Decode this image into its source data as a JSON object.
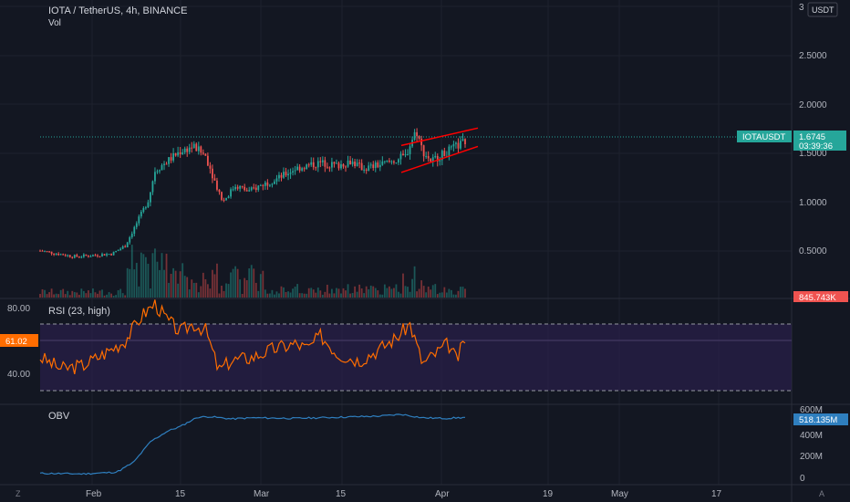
{
  "header": {
    "symbol_title": "IOTA / TetherUS, 4h, BINANCE",
    "volume_label": "Vol"
  },
  "price_axis": {
    "currency_label": "USDT",
    "ticks": [
      "3",
      "2.5000",
      "2.0000",
      "1.5000",
      "1.0000",
      "0.5000"
    ],
    "current_symbol": "IOTAUSDT",
    "current_price": "1.6745",
    "countdown": "03:39:36",
    "volume_value": "845.743K"
  },
  "rsi": {
    "title": "RSI (23, high)",
    "current_value": "61.02",
    "ticks": [
      "80.00",
      "40.00"
    ],
    "color": "#ff6d00",
    "band_color": "#2a1f4a"
  },
  "obv": {
    "title": "OBV",
    "current_value": "518.135M",
    "ticks": [
      "600M",
      "400M",
      "200M",
      "0"
    ],
    "color": "#2f7fbf"
  },
  "time_axis": {
    "labels": [
      "Feb",
      "15",
      "Mar",
      "15",
      "Apr",
      "19",
      "May",
      "17"
    ]
  },
  "corner": {
    "left_icon_label": "Z",
    "right_icon_label": "A"
  },
  "colors": {
    "up": "#26a69a",
    "down": "#ef5350",
    "channel": "#ff0000",
    "price_badge": "#26a69a"
  },
  "chart_data": {
    "type": "candlestick",
    "series_price_anchors": [
      [
        0,
        0.47
      ],
      [
        0.04,
        0.44
      ],
      [
        0.08,
        0.41
      ],
      [
        0.12,
        0.42
      ],
      [
        0.17,
        0.44
      ],
      [
        0.2,
        0.52
      ],
      [
        0.23,
        0.78
      ],
      [
        0.255,
        1.0
      ],
      [
        0.27,
        1.3
      ],
      [
        0.3,
        1.4
      ],
      [
        0.33,
        1.5
      ],
      [
        0.36,
        1.55
      ],
      [
        0.39,
        1.45
      ],
      [
        0.41,
        1.2
      ],
      [
        0.43,
        0.98
      ],
      [
        0.46,
        1.15
      ],
      [
        0.49,
        1.08
      ],
      [
        0.52,
        1.15
      ],
      [
        0.56,
        1.22
      ],
      [
        0.6,
        1.32
      ],
      [
        0.63,
        1.35
      ],
      [
        0.66,
        1.38
      ],
      [
        0.7,
        1.35
      ],
      [
        0.73,
        1.4
      ],
      [
        0.76,
        1.32
      ],
      [
        0.8,
        1.36
      ],
      [
        0.83,
        1.4
      ],
      [
        0.86,
        1.45
      ],
      [
        0.875,
        1.62
      ],
      [
        0.885,
        1.72
      ],
      [
        0.9,
        1.5
      ],
      [
        0.92,
        1.4
      ],
      [
        0.94,
        1.45
      ],
      [
        0.96,
        1.5
      ],
      [
        0.98,
        1.55
      ],
      [
        1.0,
        1.6
      ]
    ],
    "channel_upper": [
      [
        1.3,
        1.56
      ],
      [
        1.0,
        1.74
      ]
    ],
    "channel_lower": [
      [
        1.3,
        1.28
      ],
      [
        1.0,
        1.55
      ]
    ],
    "rsi_anchors": [
      [
        0,
        50
      ],
      [
        0.05,
        43
      ],
      [
        0.1,
        45
      ],
      [
        0.15,
        52
      ],
      [
        0.2,
        60
      ],
      [
        0.24,
        75
      ],
      [
        0.27,
        82
      ],
      [
        0.3,
        72
      ],
      [
        0.33,
        65
      ],
      [
        0.36,
        70
      ],
      [
        0.39,
        66
      ],
      [
        0.42,
        42
      ],
      [
        0.45,
        48
      ],
      [
        0.5,
        50
      ],
      [
        0.55,
        55
      ],
      [
        0.6,
        58
      ],
      [
        0.63,
        55
      ],
      [
        0.66,
        63
      ],
      [
        0.7,
        52
      ],
      [
        0.75,
        48
      ],
      [
        0.8,
        55
      ],
      [
        0.84,
        62
      ],
      [
        0.87,
        70
      ],
      [
        0.9,
        46
      ],
      [
        0.93,
        52
      ],
      [
        0.96,
        58
      ],
      [
        0.98,
        48
      ],
      [
        1.0,
        61
      ]
    ],
    "obv_anchors": [
      [
        0,
        35
      ],
      [
        0.1,
        30
      ],
      [
        0.18,
        45
      ],
      [
        0.22,
        130
      ],
      [
        0.26,
        310
      ],
      [
        0.3,
        400
      ],
      [
        0.33,
        440
      ],
      [
        0.37,
        520
      ],
      [
        0.4,
        525
      ],
      [
        0.45,
        505
      ],
      [
        0.5,
        515
      ],
      [
        0.6,
        510
      ],
      [
        0.7,
        520
      ],
      [
        0.8,
        530
      ],
      [
        0.85,
        545
      ],
      [
        0.9,
        515
      ],
      [
        0.95,
        510
      ],
      [
        1.0,
        518
      ]
    ],
    "rsi_levels": [
      70,
      30
    ],
    "price_range": [
      0.5,
      3.0
    ],
    "obv_range": [
      0,
      600
    ]
  }
}
